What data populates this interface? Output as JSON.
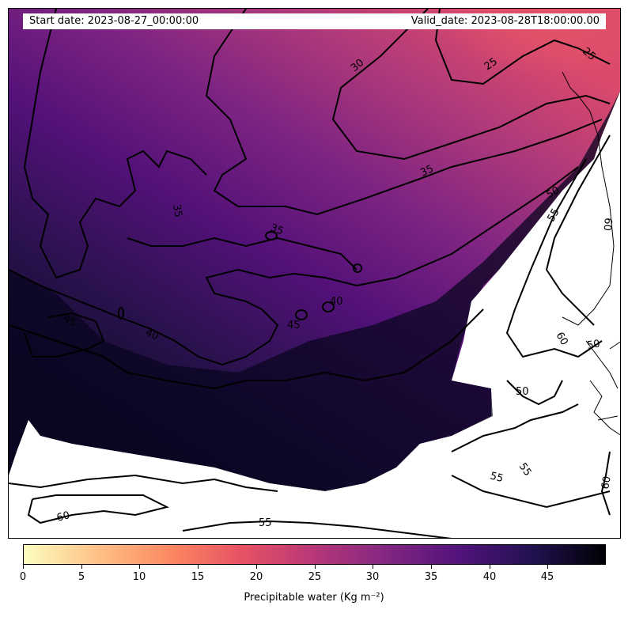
{
  "header": {
    "start_date": "Start date: 2023-08-27_00:00:00",
    "valid_date": "Valid_date: 2023-08-28T18:00:00.00"
  },
  "map": {
    "variable": "Precipitable water",
    "contour_levels": [
      25,
      30,
      35,
      40,
      45,
      50,
      55,
      60
    ],
    "contour_labels": [
      "25",
      "25",
      "30",
      "35",
      "35",
      "35",
      "40",
      "40",
      "45",
      "45",
      "50",
      "50",
      "50",
      "55",
      "55",
      "55",
      "55",
      "60",
      "60",
      "60",
      "60"
    ]
  },
  "colorbar": {
    "label": "Precipitable water (Kg m⁻²)",
    "ticks": [
      "0",
      "5",
      "10",
      "15",
      "20",
      "25",
      "30",
      "35",
      "40",
      "45"
    ],
    "tick_values": [
      0,
      5,
      10,
      15,
      20,
      25,
      30,
      35,
      40,
      45
    ],
    "range": [
      0,
      50
    ],
    "colormap": "magma_r",
    "colors": [
      "#fcfdbf",
      "#fec287",
      "#fc8961",
      "#e75263",
      "#b73779",
      "#822681",
      "#51127c",
      "#221150",
      "#000004"
    ]
  }
}
